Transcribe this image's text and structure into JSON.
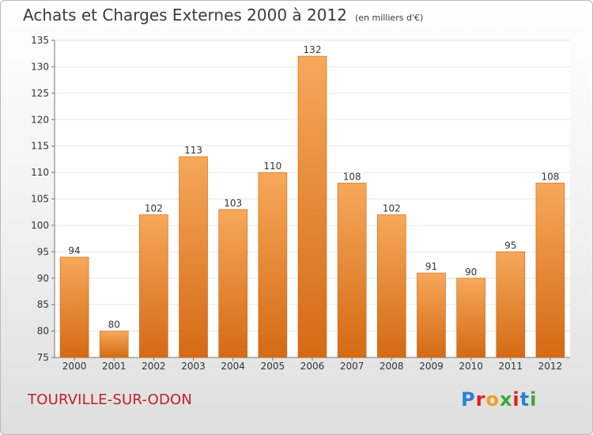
{
  "header": {
    "title": "Achats et Charges Externes 2000 à 2012",
    "unit": "(en milliers d'€)"
  },
  "footer": {
    "commune": "TOURVILLE-SUR-ODON",
    "logo_letters": [
      "P",
      "r",
      "o",
      "x",
      "i",
      "t",
      "i"
    ],
    "logo_colors": [
      "#2b7fd6",
      "#e02020",
      "#f0a020",
      "#3aa838",
      "#e02020",
      "#2b7fd6",
      "#3aa838"
    ]
  },
  "colors": {
    "bar_top": "#f6a85a",
    "bar_bottom": "#d46a14",
    "grid": "#e6e6e6",
    "axis": "#777777",
    "text": "#333333"
  },
  "chart_data": {
    "type": "bar",
    "title": "Achats et Charges Externes 2000 à 2012",
    "subtitle": "(en milliers d'€)",
    "categories": [
      "2000",
      "2001",
      "2002",
      "2003",
      "2004",
      "2005",
      "2006",
      "2007",
      "2008",
      "2009",
      "2010",
      "2011",
      "2012"
    ],
    "values": [
      94,
      80,
      102,
      113,
      103,
      110,
      132,
      108,
      102,
      91,
      90,
      95,
      108
    ],
    "ylim": [
      75,
      135
    ],
    "yticks": [
      75,
      80,
      85,
      90,
      95,
      100,
      105,
      110,
      115,
      120,
      125,
      130,
      135
    ],
    "grid": true,
    "xlabel": "",
    "ylabel": ""
  }
}
